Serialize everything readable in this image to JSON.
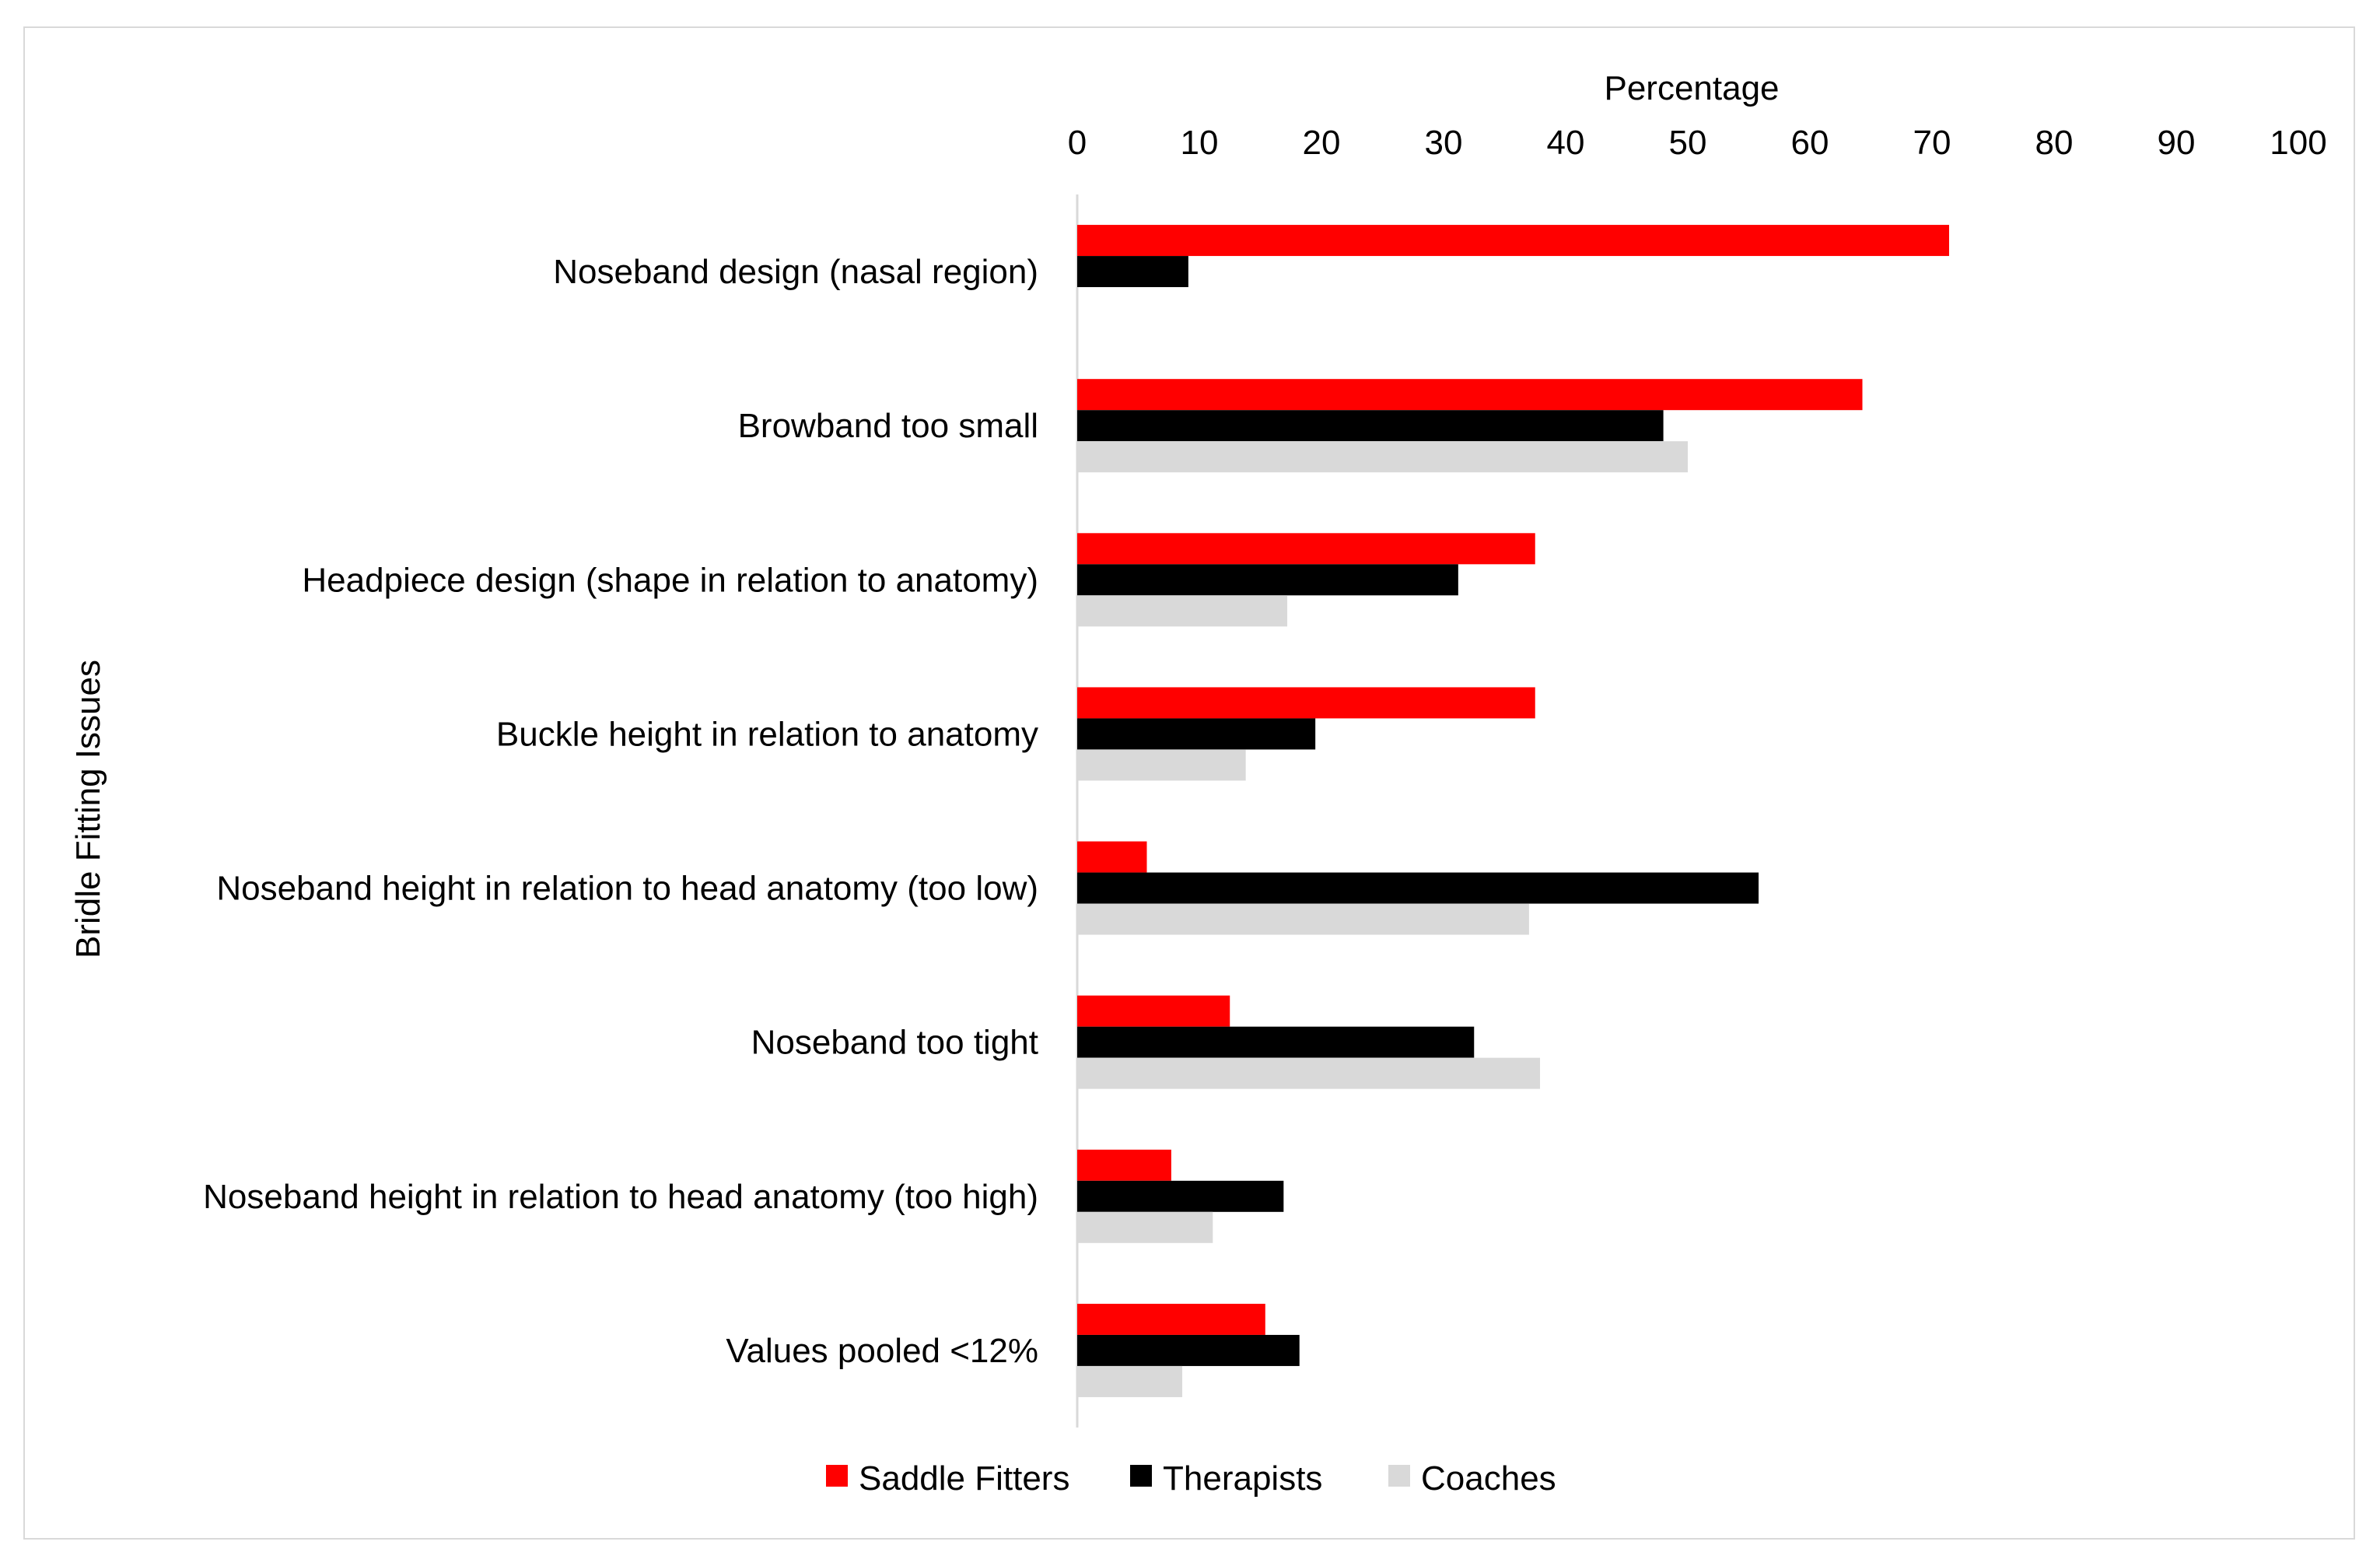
{
  "chart_data": {
    "type": "bar",
    "orientation": "horizontal",
    "xlabel": "Percentage",
    "ylabel": "Bridle Fitting Issues",
    "xlim": [
      0,
      100
    ],
    "xticks": [
      "0",
      "10",
      "20",
      "30",
      "40",
      "50",
      "60",
      "70",
      "80",
      "90",
      "100"
    ],
    "x_axis_position": "top",
    "grid": false,
    "legend_position": "bottom",
    "categories": [
      "Noseband design (nasal region)",
      "Browband too small",
      "Headpiece design (shape in relation to anatomy)",
      "Buckle height in relation to anatomy",
      "Noseband height in relation to head anatomy (too low)",
      "Noseband too tight",
      "Noseband height in relation to head anatomy (too high)",
      "Values pooled <12%"
    ],
    "series": [
      {
        "name": "Saddle Fitters",
        "color": "#ff0000",
        "values": [
          71.4,
          64.3,
          37.5,
          37.5,
          5.7,
          12.5,
          7.7,
          15.4
        ]
      },
      {
        "name": "Therapists",
        "color": "#000000",
        "values": [
          9.1,
          48.0,
          31.2,
          19.5,
          55.8,
          32.5,
          16.9,
          18.2
        ]
      },
      {
        "name": "Coaches",
        "color": "#d9d9d9",
        "values": [
          0,
          50.0,
          17.2,
          13.8,
          37.0,
          37.9,
          11.1,
          8.6
        ]
      }
    ]
  }
}
